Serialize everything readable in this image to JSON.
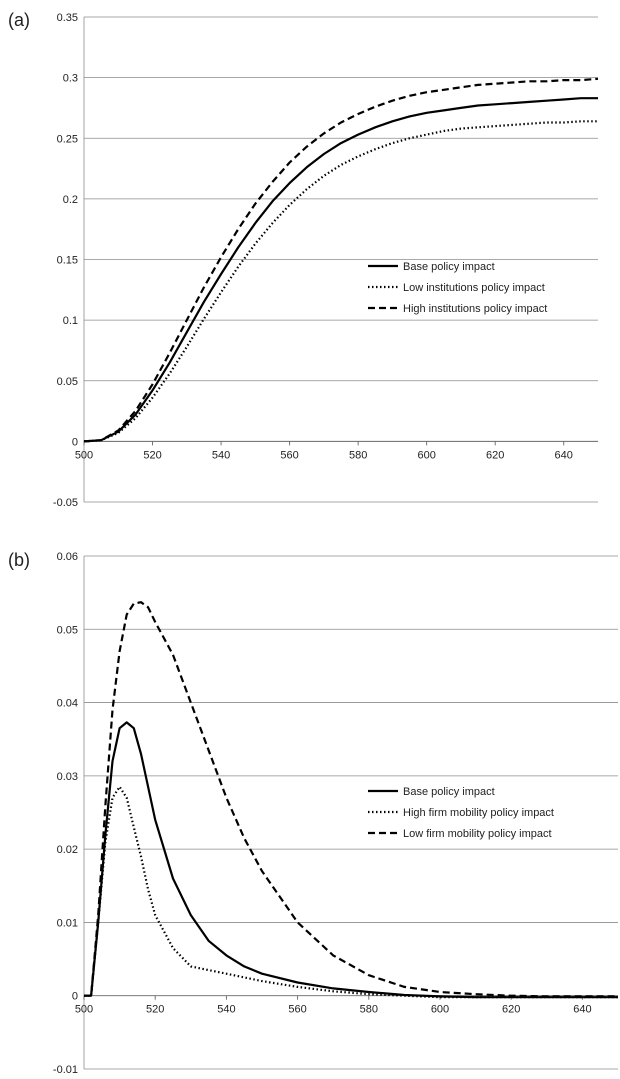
{
  "chart_data": [
    {
      "type": "line",
      "panel_label": "(a)",
      "title": "",
      "xlabel": "",
      "ylabel": "",
      "xlim": [
        500,
        650
      ],
      "ylim": [
        -0.05,
        0.35
      ],
      "x_ticks": [
        "500",
        "520",
        "540",
        "560",
        "580",
        "600",
        "620",
        "640"
      ],
      "y_ticks": [
        "-0.05",
        "0",
        "0.05",
        "0.1",
        "0.15",
        "0.2",
        "0.25",
        "0.3",
        "0.35"
      ],
      "grid": "horizontal",
      "legend_position": "center-right",
      "x": [
        500,
        505,
        510,
        515,
        520,
        525,
        530,
        535,
        540,
        545,
        550,
        555,
        560,
        565,
        570,
        575,
        580,
        585,
        590,
        595,
        600,
        605,
        610,
        615,
        620,
        625,
        630,
        635,
        640,
        645,
        650
      ],
      "series": [
        {
          "name": "Base policy impact",
          "style": "solid",
          "values": [
            0,
            0.001,
            0.008,
            0.022,
            0.042,
            0.065,
            0.09,
            0.115,
            0.138,
            0.16,
            0.18,
            0.198,
            0.213,
            0.226,
            0.237,
            0.246,
            0.253,
            0.259,
            0.264,
            0.268,
            0.271,
            0.273,
            0.275,
            0.277,
            0.278,
            0.279,
            0.28,
            0.281,
            0.282,
            0.283,
            0.283
          ]
        },
        {
          "name": "Low institutions policy impact",
          "style": "dotted",
          "values": [
            0,
            0.001,
            0.007,
            0.019,
            0.036,
            0.056,
            0.078,
            0.101,
            0.123,
            0.144,
            0.163,
            0.18,
            0.195,
            0.208,
            0.219,
            0.228,
            0.235,
            0.241,
            0.246,
            0.25,
            0.253,
            0.256,
            0.258,
            0.259,
            0.26,
            0.261,
            0.262,
            0.263,
            0.263,
            0.264,
            0.264
          ]
        },
        {
          "name": "High institutions policy impact",
          "style": "dashed",
          "values": [
            0,
            0.001,
            0.009,
            0.025,
            0.047,
            0.073,
            0.1,
            0.127,
            0.152,
            0.175,
            0.196,
            0.214,
            0.23,
            0.243,
            0.254,
            0.263,
            0.27,
            0.276,
            0.281,
            0.285,
            0.288,
            0.29,
            0.292,
            0.294,
            0.295,
            0.296,
            0.297,
            0.297,
            0.298,
            0.298,
            0.299
          ]
        }
      ]
    },
    {
      "type": "line",
      "panel_label": "(b)",
      "title": "",
      "xlabel": "",
      "ylabel": "",
      "xlim": [
        500,
        650
      ],
      "ylim": [
        -0.01,
        0.06
      ],
      "x_ticks": [
        "500",
        "520",
        "540",
        "560",
        "580",
        "600",
        "620",
        "640"
      ],
      "y_ticks": [
        "-0.01",
        "0",
        "0.01",
        "0.02",
        "0.03",
        "0.04",
        "0.05",
        "0.06"
      ],
      "grid": "horizontal",
      "legend_position": "center-right",
      "series": [
        {
          "name": "Base policy impact",
          "style": "solid",
          "x": [
            500,
            502,
            504,
            506,
            508,
            510,
            512,
            514,
            516,
            518,
            520,
            525,
            530,
            535,
            540,
            545,
            550,
            560,
            570,
            580,
            590,
            600,
            610,
            620,
            630,
            640,
            650
          ],
          "values": [
            0,
            0,
            0.01,
            0.022,
            0.032,
            0.0365,
            0.0373,
            0.0365,
            0.033,
            0.0285,
            0.024,
            0.016,
            0.011,
            0.0075,
            0.0055,
            0.004,
            0.003,
            0.0018,
            0.001,
            0.0005,
            0.0001,
            -0.0001,
            -0.0002,
            -0.0002,
            -0.0002,
            -0.0002,
            -0.0002
          ]
        },
        {
          "name": "High firm mobility policy impact",
          "style": "dotted",
          "x": [
            500,
            502,
            504,
            506,
            508,
            510,
            512,
            514,
            516,
            518,
            520,
            525,
            530,
            535,
            540,
            545,
            550,
            560,
            570,
            580,
            590,
            600,
            610,
            620,
            630,
            640,
            650
          ],
          "values": [
            0,
            0,
            0.01,
            0.021,
            0.027,
            0.0285,
            0.027,
            0.023,
            0.019,
            0.0145,
            0.011,
            0.0065,
            0.004,
            0.0035,
            0.003,
            0.0025,
            0.002,
            0.0012,
            0.0006,
            0.0002,
            0,
            -0.0002,
            -0.0002,
            -0.0002,
            -0.0002,
            -0.0002,
            -0.0002
          ]
        },
        {
          "name": "Low firm mobility policy impact",
          "style": "dashed",
          "x": [
            500,
            502,
            504,
            506,
            508,
            510,
            512,
            514,
            516,
            518,
            520,
            525,
            530,
            535,
            540,
            545,
            550,
            560,
            570,
            580,
            590,
            600,
            610,
            620,
            630,
            640,
            650
          ],
          "values": [
            0,
            0,
            0.011,
            0.026,
            0.039,
            0.047,
            0.052,
            0.0535,
            0.0537,
            0.053,
            0.051,
            0.0465,
            0.04,
            0.0335,
            0.027,
            0.0215,
            0.017,
            0.01,
            0.0055,
            0.0028,
            0.0012,
            0.0005,
            0.0002,
            0,
            -0.0001,
            -0.0001,
            -0.0001
          ]
        }
      ]
    }
  ]
}
